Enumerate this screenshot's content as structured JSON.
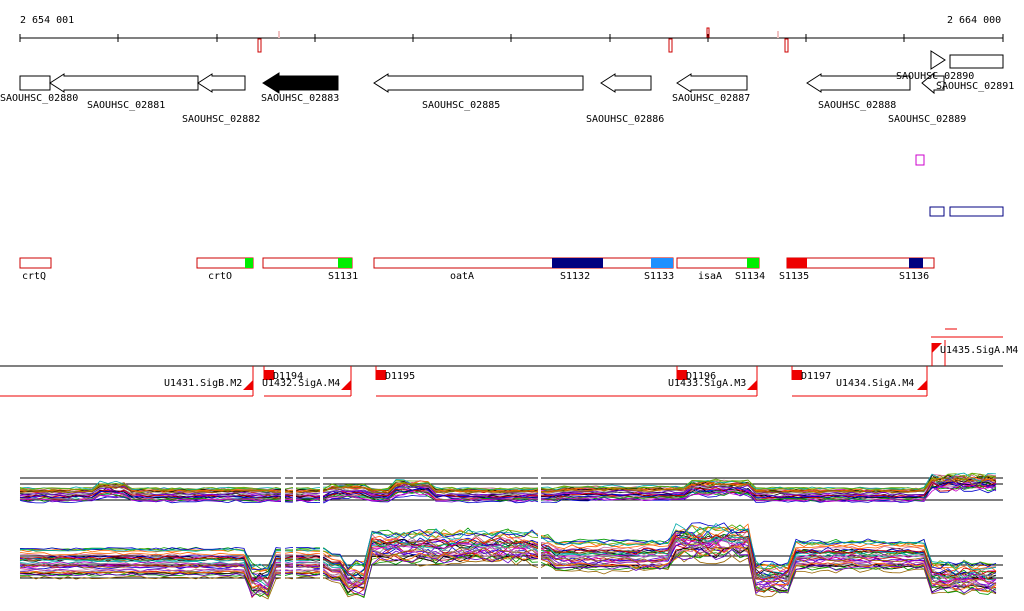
{
  "coords": {
    "start": "2 654 001",
    "end": "2 664 000"
  },
  "genes": [
    {
      "label": "SAOUHSC_02880",
      "strand": "+",
      "filled": false
    },
    {
      "label": "SAOUHSC_02881",
      "strand": "-",
      "filled": false
    },
    {
      "label": "SAOUHSC_02882",
      "strand": "-",
      "filled": false
    },
    {
      "label": "SAOUHSC_02883",
      "strand": "-",
      "filled": true
    },
    {
      "label": "SAOUHSC_02885",
      "strand": "-",
      "filled": false
    },
    {
      "label": "SAOUHSC_02886",
      "strand": "-",
      "filled": false
    },
    {
      "label": "SAOUHSC_02887",
      "strand": "-",
      "filled": false
    },
    {
      "label": "SAOUHSC_02888",
      "strand": "-",
      "filled": false
    },
    {
      "label": "SAOUHSC_02889",
      "strand": "-",
      "filled": false
    },
    {
      "label": "SAOUHSC_02890",
      "strand": "+",
      "filled": false
    },
    {
      "label": "SAOUHSC_02891",
      "strand": "+",
      "filled": false
    }
  ],
  "names": [
    {
      "label": "crtQ"
    },
    {
      "label": "crtO"
    },
    {
      "label": "oatA"
    },
    {
      "label": "isaA"
    }
  ],
  "segments": [
    {
      "label": "S1131",
      "color": "#00ee00"
    },
    {
      "label": "S1132",
      "color": "#000080"
    },
    {
      "label": "S1133",
      "color": "#1e90ff"
    },
    {
      "label": "S1134",
      "color": "#00ee00"
    },
    {
      "label": "S1135",
      "color": "#ee0000"
    },
    {
      "label": "S1136",
      "color": "#000080"
    }
  ],
  "promoters": [
    {
      "label": "U1431.SigB.M2"
    },
    {
      "label": "U1432.SigA.M4"
    },
    {
      "label": "U1433.SigA.M3"
    },
    {
      "label": "U1434.SigA.M4"
    },
    {
      "label": "U1435.SigA.M4"
    }
  ],
  "transcripts": [
    {
      "label": "D1194"
    },
    {
      "label": "D1195"
    },
    {
      "label": "D1196"
    },
    {
      "label": "D1197"
    }
  ],
  "colors": {
    "gene_outline": "#000000",
    "gene_filled": "#000000",
    "region_outline": "#cc0000",
    "promoter": "#ee0000",
    "unit_box": "#000080",
    "magenta_box": "#cc00cc"
  },
  "profile_colors": [
    "#000000",
    "#cc0000",
    "#009900",
    "#0000cc",
    "#cc00cc",
    "#996600",
    "#00aaaa",
    "#888888",
    "#ff6600",
    "#6600cc",
    "#66aa00",
    "#cc6699"
  ]
}
